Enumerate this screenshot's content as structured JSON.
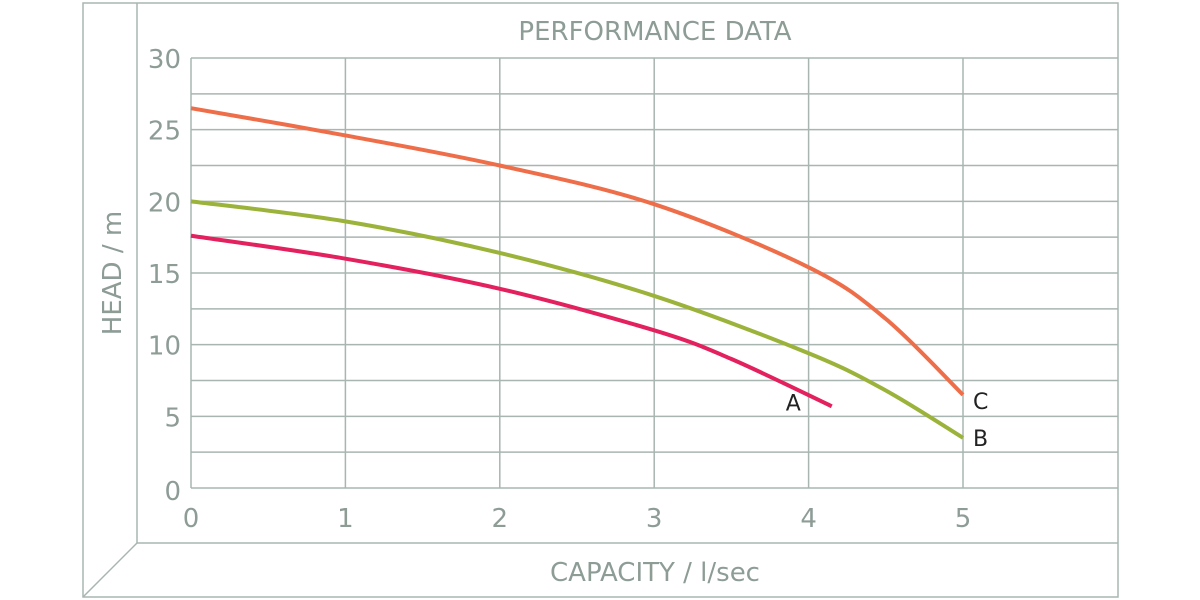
{
  "chart_data": {
    "type": "line",
    "title": "PERFORMANCE DATA",
    "xlabel": "CAPACITY / l/sec",
    "ylabel": "HEAD / m",
    "xlim": [
      0,
      6
    ],
    "ylim": [
      0,
      30
    ],
    "x_ticks": [
      "0",
      "1",
      "2",
      "3",
      "4",
      "5"
    ],
    "y_ticks": [
      "0",
      "5",
      "10",
      "15",
      "20",
      "25",
      "30"
    ],
    "grid": true,
    "y_minor_step": 2.5,
    "legend_position": "inline curve-end labels",
    "series": [
      {
        "name": "A",
        "color": "#e3215f",
        "x": [
          0,
          1,
          2,
          3,
          3.5,
          4.15
        ],
        "y": [
          17.6,
          16.0,
          13.9,
          11.0,
          9.0,
          5.7
        ]
      },
      {
        "name": "B",
        "color": "#9bb33a",
        "x": [
          0,
          1,
          2,
          3,
          4,
          4.5,
          5
        ],
        "y": [
          20.0,
          18.6,
          16.4,
          13.4,
          9.4,
          6.8,
          3.5
        ]
      },
      {
        "name": "C",
        "color": "#ee6e4a",
        "x": [
          0,
          1,
          2,
          3,
          4,
          4.5,
          5
        ],
        "y": [
          26.5,
          24.6,
          22.5,
          19.8,
          15.4,
          11.8,
          6.5
        ]
      }
    ]
  },
  "colors": {
    "grid": "#a9b5b0",
    "text": "#8e9c96",
    "label": "#222222"
  }
}
